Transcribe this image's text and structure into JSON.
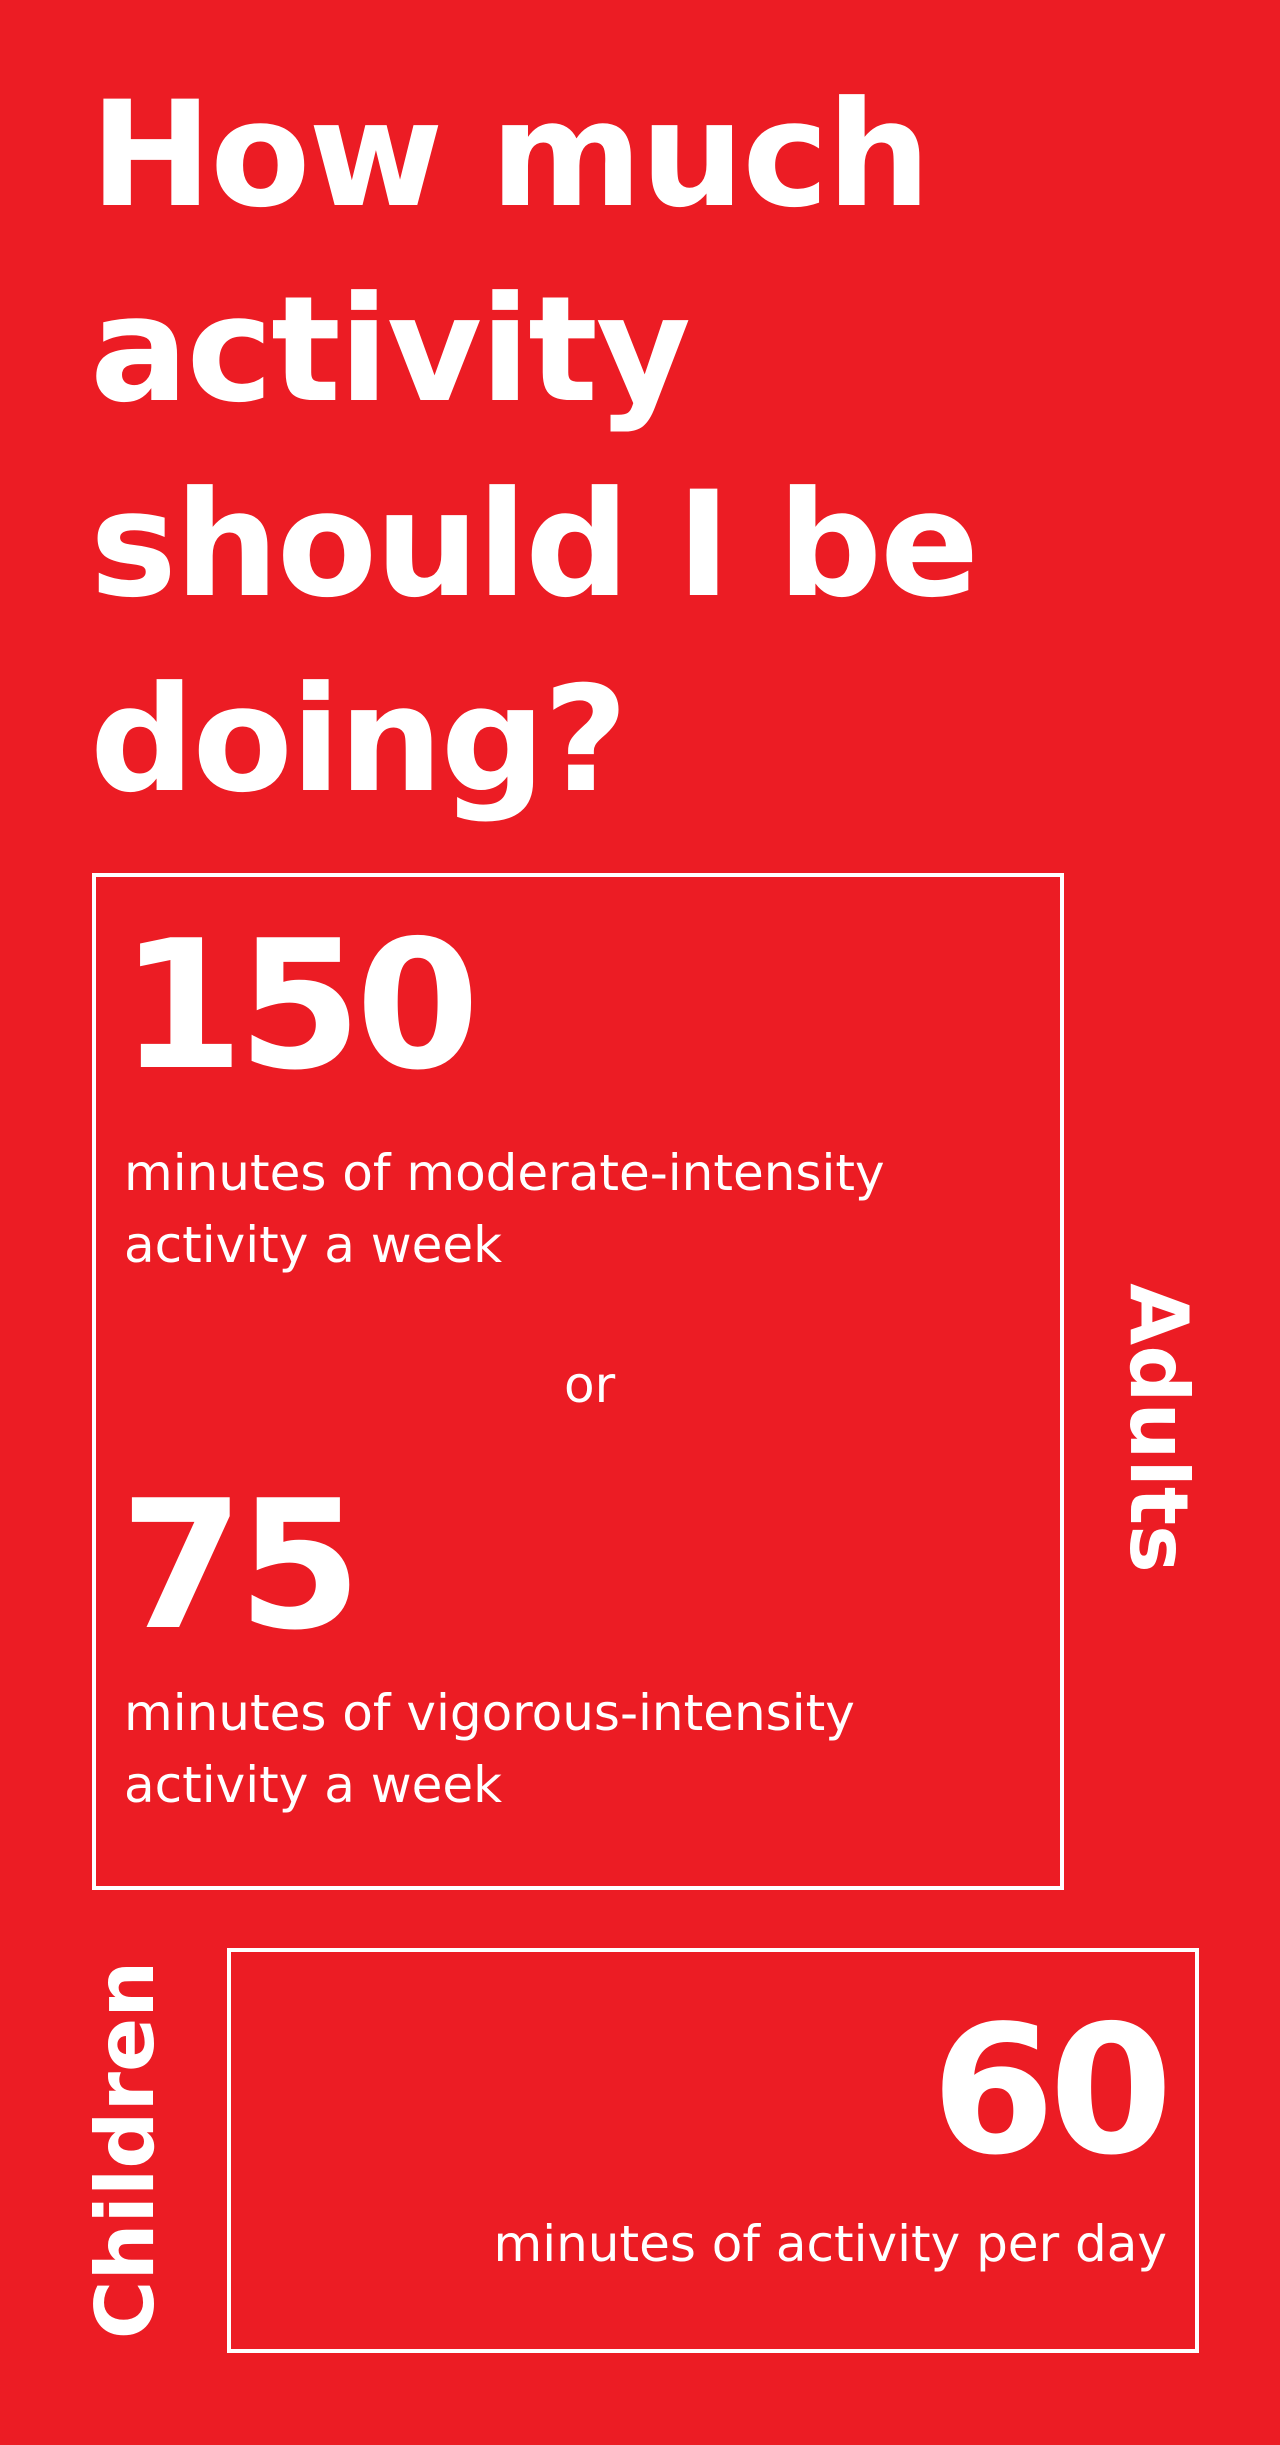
{
  "title": {
    "line1": "How much",
    "line2": "activity",
    "line3": "should I be",
    "line4": "doing?"
  },
  "adults": {
    "label": "Adults",
    "moderate_number": "150",
    "moderate_text_line1": "minutes of moderate-intensity",
    "moderate_text_line2": "activity a week",
    "or_text": "or",
    "vigorous_number": "75",
    "vigorous_text_line1": "minutes of vigorous-intensity",
    "vigorous_text_line2": "activity a week"
  },
  "children": {
    "label": "Children",
    "number": "60",
    "text": "minutes of activity per day"
  },
  "colors": {
    "background": "#ec1c24",
    "foreground": "#ffffff"
  }
}
